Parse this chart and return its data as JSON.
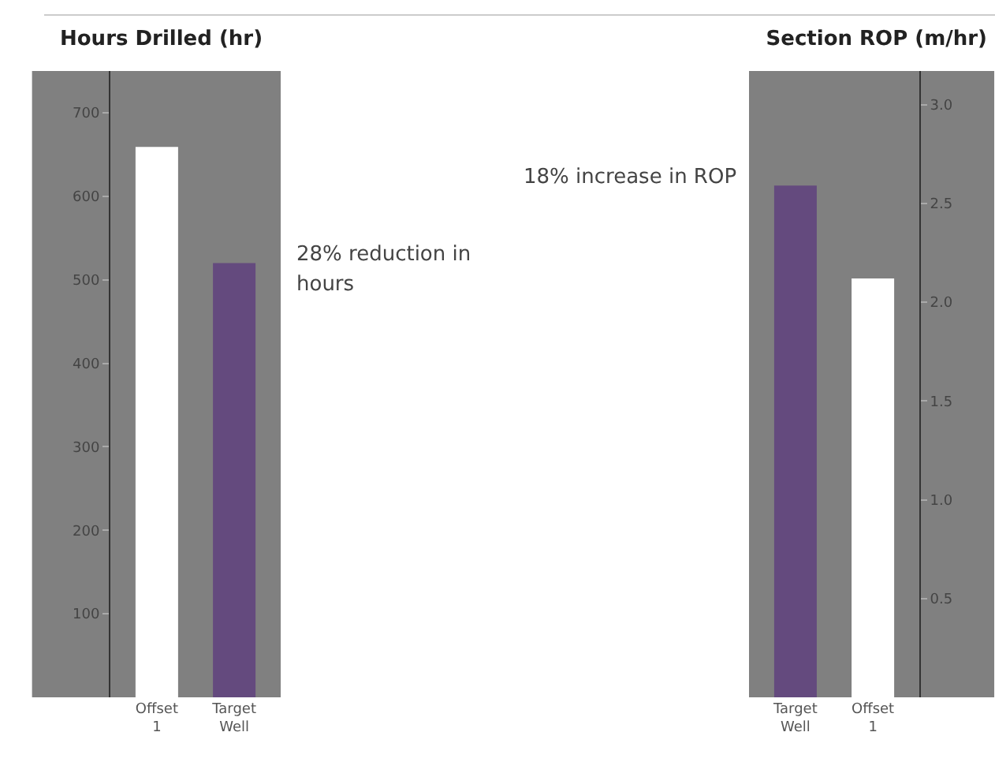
{
  "chart_data": [
    {
      "type": "bar",
      "title": "Hours Drilled (hr)",
      "categories": [
        "Offset 1",
        "Target Well"
      ],
      "values": [
        659,
        520
      ],
      "colors": [
        "#ffffff",
        "#644a7e"
      ],
      "ylim": [
        0,
        750
      ],
      "yticks": [
        100,
        200,
        300,
        400,
        500,
        600,
        700
      ],
      "annotations": [
        "28% reduction in hours"
      ]
    },
    {
      "type": "bar",
      "title": "Section ROP (m/hr)",
      "categories": [
        "Target Well",
        "Offset 1"
      ],
      "values": [
        2.59,
        2.12
      ],
      "colors": [
        "#644a7e",
        "#ffffff"
      ],
      "ylim": [
        0,
        3.17
      ],
      "yticks": [
        0.5,
        {
          "value": 1,
          "label": "1.0"
        },
        1.5,
        {
          "value": 2,
          "label": "2.0"
        },
        2.5,
        {
          "value": 3,
          "label": "3.0"
        }
      ],
      "annotations": [
        "18% increase in ROP"
      ]
    }
  ]
}
